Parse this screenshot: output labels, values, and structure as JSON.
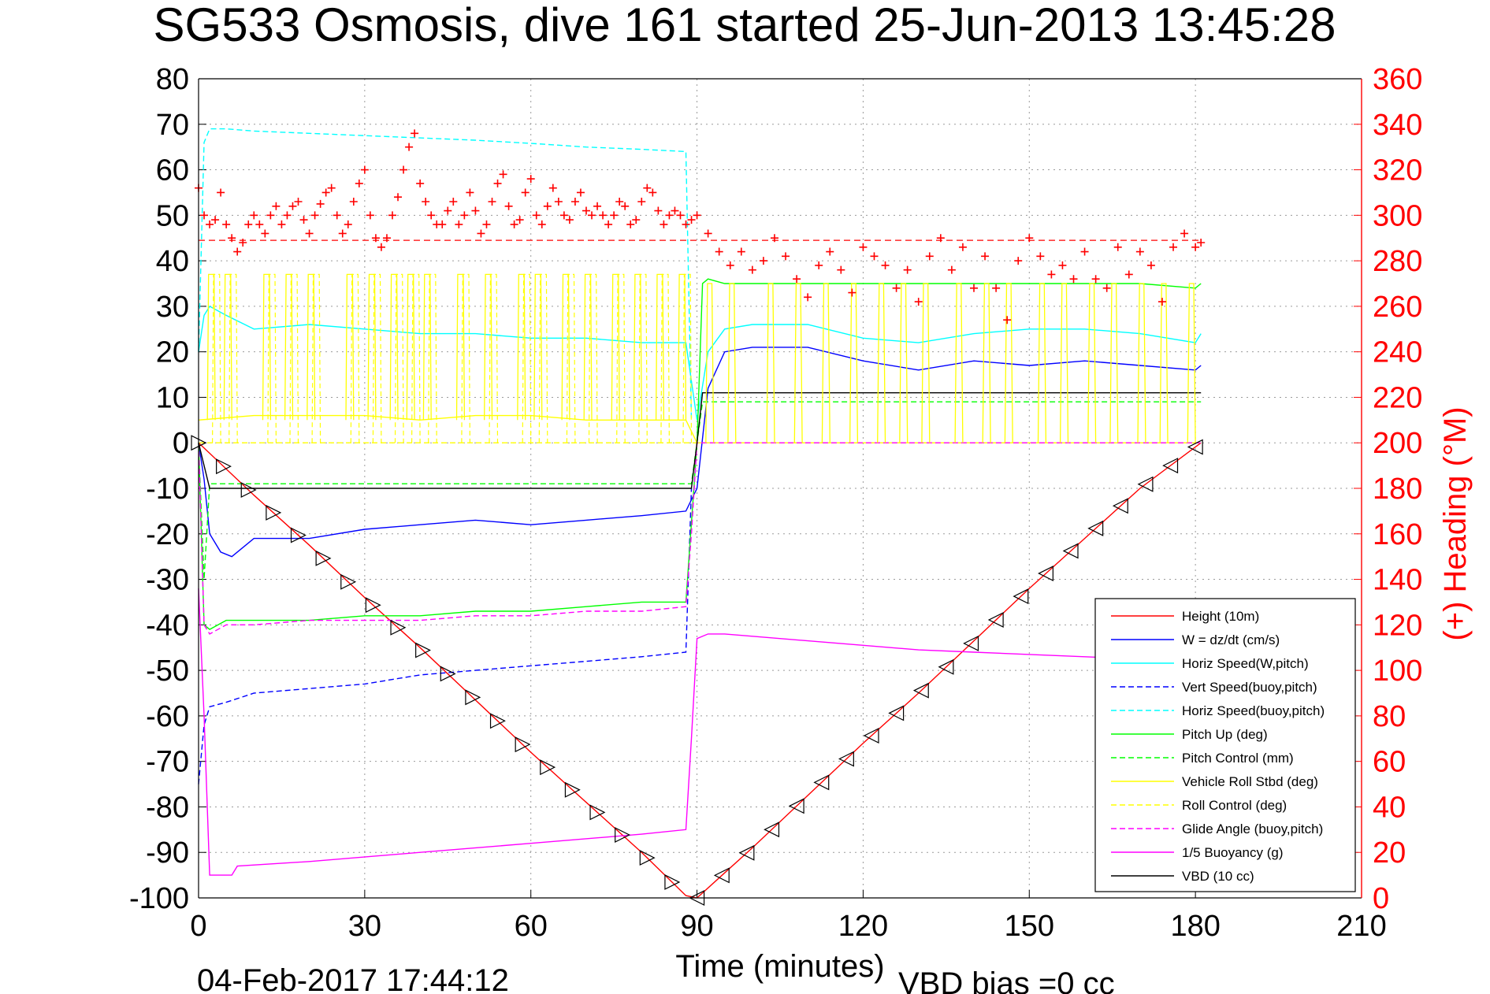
{
  "chart_data": {
    "type": "line",
    "title": "SG533 Osmosis, dive 161 started 25-Jun-2013 13:45:28",
    "xlabel": "Time (minutes)",
    "ylabel": "",
    "y2label": "(+) Heading (°M)",
    "xlim": [
      0,
      210
    ],
    "ylim": [
      -100,
      80
    ],
    "y2lim": [
      0,
      360
    ],
    "xticks": [
      0,
      30,
      60,
      90,
      120,
      150,
      180,
      210
    ],
    "yticks": [
      -100,
      -90,
      -80,
      -70,
      -60,
      -50,
      -40,
      -30,
      -20,
      -10,
      0,
      10,
      20,
      30,
      40,
      50,
      60,
      70,
      80
    ],
    "y2ticks": [
      0,
      20,
      40,
      60,
      80,
      100,
      120,
      140,
      160,
      180,
      200,
      220,
      240,
      260,
      280,
      300,
      320,
      340,
      360
    ],
    "grid": true,
    "legend_position": "lower-right",
    "footer_date": "04-Feb-2017 17:44:12",
    "footer_vbd": "VBD bias =0 cc",
    "series": [
      {
        "name": "Height (10m)",
        "color": "#ff0000",
        "style": "solid",
        "axis": "left",
        "x": [
          0,
          10,
          20,
          30,
          40,
          50,
          60,
          70,
          80,
          88,
          90,
          95,
          100,
          110,
          120,
          130,
          140,
          150,
          160,
          170,
          181
        ],
        "y": [
          0,
          -11.5,
          -22.5,
          -34,
          -45,
          -56.5,
          -68,
          -79,
          -90,
          -99.5,
          -100,
          -94.5,
          -89,
          -77.5,
          -66,
          -55,
          -43.5,
          -32,
          -21,
          -10,
          0
        ]
      },
      {
        "name": "W = dz/dt (cm/s)",
        "color": "#0000ff",
        "style": "solid",
        "axis": "left",
        "x": [
          0,
          1,
          2,
          4,
          6,
          10,
          20,
          30,
          40,
          50,
          60,
          70,
          80,
          88,
          90,
          92,
          95,
          100,
          110,
          120,
          130,
          140,
          150,
          160,
          170,
          180,
          181
        ],
        "y": [
          0,
          -8,
          -20,
          -24,
          -25,
          -21,
          -21,
          -19,
          -18,
          -17,
          -18,
          -17,
          -16,
          -15,
          -10,
          12,
          20,
          21,
          21,
          18,
          16,
          18,
          17,
          18,
          17,
          16,
          17
        ]
      },
      {
        "name": "Horiz Speed(W,pitch)",
        "color": "#00ffff",
        "style": "solid",
        "axis": "left",
        "x": [
          0,
          1,
          2,
          5,
          10,
          20,
          30,
          40,
          50,
          60,
          70,
          80,
          88,
          90,
          92,
          95,
          100,
          110,
          120,
          130,
          140,
          150,
          160,
          170,
          180,
          181
        ],
        "y": [
          20,
          28,
          30,
          28,
          25,
          26,
          25,
          24,
          24,
          23,
          23,
          22,
          22,
          5,
          20,
          25,
          26,
          26,
          23,
          22,
          24,
          25,
          25,
          24,
          22,
          24
        ]
      },
      {
        "name": "Vert Speed(buoy,pitch)",
        "color": "#0000ff",
        "style": "dashed",
        "axis": "left",
        "x": [
          0,
          1,
          2,
          5,
          10,
          20,
          30,
          40,
          50,
          60,
          70,
          80,
          88,
          89
        ],
        "y": [
          -75,
          -62,
          -58,
          -57,
          -55,
          -54,
          -53,
          -51,
          -50,
          -49,
          -48,
          -47,
          -46,
          -10
        ]
      },
      {
        "name": "Horiz Speed(buoy,pitch)",
        "color": "#00ffff",
        "style": "dashed",
        "axis": "left",
        "x": [
          0,
          1,
          2,
          5,
          10,
          20,
          30,
          40,
          50,
          60,
          70,
          80,
          88,
          89
        ],
        "y": [
          20,
          66,
          69,
          69,
          68.5,
          68,
          67.5,
          67,
          66.5,
          65.8,
          65,
          64.5,
          64,
          5
        ]
      },
      {
        "name": "Pitch Up (deg)",
        "color": "#00ff00",
        "style": "solid",
        "axis": "left",
        "x": [
          0,
          1,
          2,
          5,
          10,
          20,
          30,
          40,
          50,
          60,
          70,
          80,
          88,
          90,
          91,
          92,
          95,
          100,
          110,
          120,
          130,
          140,
          150,
          160,
          170,
          180,
          181
        ],
        "y": [
          0,
          -40,
          -41,
          -39,
          -39,
          -39,
          -38,
          -38,
          -37,
          -37,
          -36,
          -35,
          -35,
          0,
          35,
          36,
          35,
          35,
          35,
          35,
          35,
          35,
          35,
          35,
          35,
          34,
          35
        ]
      },
      {
        "name": "Pitch Control (mm)",
        "color": "#00ff00",
        "style": "dashed",
        "axis": "left",
        "x": [
          0,
          1,
          2,
          88,
          89,
          90,
          91,
          181
        ],
        "y": [
          0,
          -30,
          -9,
          -9,
          -9,
          0,
          9,
          9
        ]
      },
      {
        "name": "Vehicle Roll Stbd (deg)",
        "color": "#ffff00",
        "style": "solid",
        "axis": "left",
        "x": [
          0,
          10,
          20,
          30,
          40,
          50,
          60,
          70,
          80,
          88,
          90,
          100,
          110,
          120,
          130,
          140,
          150,
          160,
          170,
          180,
          181
        ],
        "y": [
          5,
          6,
          6,
          6,
          5,
          6,
          6,
          5,
          5,
          5,
          0,
          0,
          0,
          0,
          0,
          0,
          0,
          0,
          0,
          0,
          0
        ]
      },
      {
        "name": "Roll Control (deg)",
        "color": "#ffff00",
        "style": "dashed",
        "axis": "left",
        "x": [
          0,
          88,
          89,
          181
        ],
        "y": [
          0,
          0,
          0,
          0
        ]
      },
      {
        "name": "Glide Angle (buoy,pitch)",
        "color": "#ff00ff",
        "style": "dashed",
        "axis": "left",
        "x": [
          0,
          1,
          2,
          5,
          10,
          20,
          30,
          40,
          50,
          60,
          70,
          80,
          88,
          89,
          90,
          181
        ],
        "y": [
          0,
          -40,
          -42,
          -40,
          -40,
          -39,
          -39,
          -39,
          -38,
          -38,
          -37,
          -37,
          -36,
          -20,
          0,
          0
        ]
      },
      {
        "name": "1/5 Buoyancy (g)",
        "color": "#ff00ff",
        "style": "solid",
        "axis": "left",
        "x": [
          0,
          1,
          2,
          6,
          7,
          20,
          40,
          60,
          80,
          88,
          89,
          90,
          92,
          95,
          100,
          110,
          120,
          130,
          140,
          150,
          160,
          170,
          180,
          181
        ],
        "y": [
          -32,
          -60,
          -95,
          -95,
          -93,
          -92,
          -90,
          -88,
          -86,
          -85,
          -65,
          -43,
          -42,
          -42,
          -42.5,
          -43.5,
          -44.5,
          -45.5,
          -46,
          -46.5,
          -47,
          -47.5,
          -47.5,
          -47.5
        ]
      },
      {
        "name": "VBD (10 cc)",
        "color": "#000000",
        "style": "solid",
        "axis": "left",
        "x": [
          0,
          1,
          2,
          88,
          89,
          90,
          91,
          181
        ],
        "y": [
          0,
          -5,
          -10,
          -10,
          -10,
          0,
          11,
          11
        ]
      }
    ],
    "heading": {
      "name": "Heading (°M)",
      "color": "#ff0000",
      "marker": "+",
      "axis": "right",
      "mean": 289,
      "x": [
        0,
        1,
        2,
        3,
        4,
        5,
        6,
        7,
        8,
        9,
        10,
        11,
        12,
        13,
        14,
        15,
        16,
        17,
        18,
        19,
        20,
        21,
        22,
        23,
        24,
        25,
        26,
        27,
        28,
        29,
        30,
        31,
        32,
        33,
        34,
        35,
        36,
        37,
        38,
        39,
        40,
        41,
        42,
        43,
        44,
        45,
        46,
        47,
        48,
        49,
        50,
        51,
        52,
        53,
        54,
        55,
        56,
        57,
        58,
        59,
        60,
        61,
        62,
        63,
        64,
        65,
        66,
        67,
        68,
        69,
        70,
        71,
        72,
        73,
        74,
        75,
        76,
        77,
        78,
        79,
        80,
        81,
        82,
        83,
        84,
        85,
        86,
        87,
        88,
        89,
        90,
        92,
        94,
        96,
        98,
        100,
        102,
        104,
        106,
        108,
        110,
        112,
        114,
        116,
        118,
        120,
        122,
        124,
        126,
        128,
        130,
        132,
        134,
        136,
        138,
        140,
        142,
        144,
        146,
        148,
        150,
        152,
        154,
        156,
        158,
        160,
        162,
        164,
        166,
        168,
        170,
        172,
        174,
        176,
        178,
        180,
        181
      ],
      "y": [
        312,
        300,
        296,
        298,
        310,
        296,
        290,
        284,
        288,
        296,
        300,
        296,
        292,
        300,
        304,
        296,
        300,
        304,
        306,
        298,
        292,
        300,
        305,
        310,
        312,
        300,
        292,
        296,
        306,
        314,
        320,
        300,
        290,
        286,
        290,
        300,
        308,
        320,
        330,
        336,
        314,
        306,
        300,
        296,
        296,
        302,
        306,
        296,
        300,
        310,
        302,
        292,
        296,
        306,
        314,
        318,
        304,
        296,
        298,
        310,
        316,
        300,
        296,
        304,
        312,
        306,
        300,
        298,
        306,
        310,
        302,
        300,
        304,
        300,
        296,
        300,
        306,
        304,
        296,
        298,
        306,
        312,
        310,
        302,
        296,
        300,
        302,
        300,
        296,
        298,
        300,
        292,
        284,
        278,
        284,
        276,
        280,
        290,
        282,
        272,
        264,
        278,
        284,
        276,
        266,
        286,
        282,
        278,
        268,
        276,
        262,
        282,
        290,
        276,
        286,
        268,
        282,
        268,
        254,
        280,
        290,
        282,
        274,
        278,
        272,
        284,
        272,
        268,
        286,
        274,
        284,
        278,
        262,
        286,
        292,
        286,
        288
      ]
    }
  }
}
